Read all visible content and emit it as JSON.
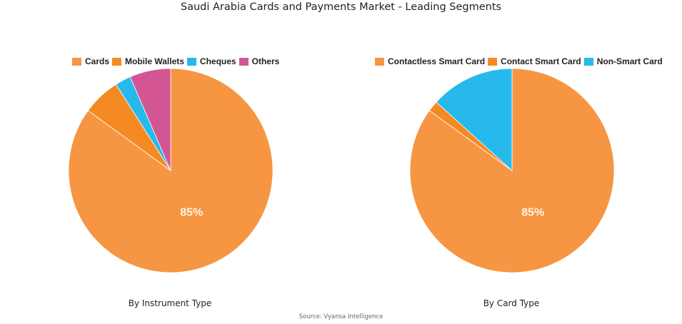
{
  "title": "Saudi Arabia Cards and Payments Market - Leading Segments",
  "source": "Source: Vyansa Intelligence",
  "chart_data": [
    {
      "type": "pie",
      "subtitle": "By Instrument Type",
      "categories": [
        "Cards",
        "Mobile Wallets",
        "Cheques",
        "Others"
      ],
      "values": [
        85,
        6,
        2.5,
        6.5
      ],
      "colors": [
        "#F79642",
        "#F58A22",
        "#27B9EC",
        "#D45593"
      ],
      "data_labels": [
        "85%",
        "",
        "",
        ""
      ],
      "legend_position": "top"
    },
    {
      "type": "pie",
      "subtitle": "By Card Type",
      "categories": [
        "Contactless Smart Card",
        "Contact Smart Card",
        "Non-Smart Card"
      ],
      "values": [
        85,
        1.7,
        13.3
      ],
      "colors": [
        "#F79642",
        "#F58A22",
        "#27B9EC"
      ],
      "data_labels": [
        "85%",
        "",
        ""
      ],
      "legend_position": "top"
    }
  ]
}
